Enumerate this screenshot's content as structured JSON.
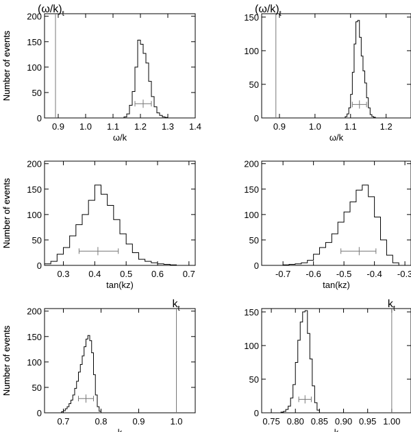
{
  "chart_data": [
    {
      "type": "histogram",
      "id": "p1",
      "xlabel": "ω/k",
      "ylabel": "Number of events",
      "xlim": [
        0.85,
        1.4
      ],
      "ylim": [
        0,
        205
      ],
      "xticks": [
        0.9,
        1.0,
        1.1,
        1.2,
        1.3,
        1.4
      ],
      "xtick_labels": [
        "0.9",
        "1.0",
        "1.1",
        "1.2",
        "1.3",
        "1.4"
      ],
      "yticks": [
        0,
        50,
        100,
        150,
        200
      ],
      "ytick_labels": [
        "0",
        "50",
        "100",
        "150",
        "200"
      ],
      "bin_edges": [
        1.14,
        1.15,
        1.16,
        1.17,
        1.18,
        1.19,
        1.2,
        1.21,
        1.22,
        1.23,
        1.24,
        1.25,
        1.26,
        1.27,
        1.28,
        1.29,
        1.3
      ],
      "counts": [
        2,
        8,
        25,
        52,
        100,
        153,
        145,
        127,
        108,
        72,
        42,
        22,
        10,
        5,
        2,
        1
      ],
      "reference": {
        "value": 0.89,
        "label": "(ω/k)",
        "subscript": "t"
      },
      "errorbar": {
        "center": 1.21,
        "low": 1.18,
        "high": 1.24,
        "y": 28
      }
    },
    {
      "type": "histogram",
      "id": "p2",
      "xlabel": "ω/k",
      "ylabel": "Number of events",
      "xlim": [
        0.85,
        1.27
      ],
      "ylim": [
        0,
        155
      ],
      "xticks": [
        0.9,
        1.0,
        1.1,
        1.2
      ],
      "xtick_labels": [
        "0.9",
        "1.0",
        "1.1",
        "1.2"
      ],
      "yticks": [
        0,
        50,
        100,
        150
      ],
      "ytick_labels": [
        "0",
        "50",
        "100",
        "150"
      ],
      "bin_edges": [
        1.085,
        1.09,
        1.095,
        1.1,
        1.105,
        1.11,
        1.115,
        1.12,
        1.125,
        1.13,
        1.135,
        1.14,
        1.145,
        1.15,
        1.155,
        1.16,
        1.165,
        1.17
      ],
      "counts": [
        2,
        6,
        15,
        35,
        68,
        110,
        143,
        145,
        120,
        92,
        70,
        52,
        30,
        15,
        5,
        2,
        1
      ],
      "reference": {
        "value": 0.89,
        "label": "(ω/k)",
        "subscript": "t"
      },
      "errorbar": {
        "center": 1.125,
        "low": 1.105,
        "high": 1.145,
        "y": 20
      }
    },
    {
      "type": "histogram",
      "id": "p3",
      "xlabel": "tan(kz)",
      "ylabel": "Number of events",
      "xlim": [
        0.24,
        0.72
      ],
      "ylim": [
        0,
        205
      ],
      "xticks": [
        0.3,
        0.4,
        0.5,
        0.6,
        0.7
      ],
      "xtick_labels": [
        "0.3",
        "0.4",
        "0.5",
        "0.6",
        "0.7"
      ],
      "yticks": [
        0,
        50,
        100,
        150,
        200
      ],
      "ytick_labels": [
        "0",
        "50",
        "100",
        "150",
        "200"
      ],
      "bin_edges": [
        0.24,
        0.26,
        0.28,
        0.3,
        0.32,
        0.34,
        0.36,
        0.38,
        0.4,
        0.42,
        0.44,
        0.46,
        0.48,
        0.5,
        0.52,
        0.54,
        0.56,
        0.58,
        0.6,
        0.62,
        0.64,
        0.66
      ],
      "counts": [
        3,
        8,
        22,
        35,
        58,
        80,
        100,
        128,
        158,
        140,
        118,
        90,
        62,
        42,
        25,
        12,
        8,
        5,
        3,
        2,
        1
      ],
      "errorbar": {
        "center": 0.41,
        "low": 0.35,
        "high": 0.475,
        "y": 28
      }
    },
    {
      "type": "histogram",
      "id": "p4",
      "xlabel": "tan(kz)",
      "ylabel": "Number of events",
      "xlim": [
        -0.77,
        -0.28
      ],
      "ylim": [
        0,
        205
      ],
      "xticks": [
        -0.7,
        -0.6,
        -0.5,
        -0.4,
        -0.3
      ],
      "xtick_labels": [
        "-0.7",
        "-0.6",
        "-0.5",
        "-0.4",
        "-0.3"
      ],
      "yticks": [
        0,
        50,
        100,
        150,
        200
      ],
      "ytick_labels": [
        "0",
        "50",
        "100",
        "150",
        "200"
      ],
      "bin_edges": [
        -0.7,
        -0.68,
        -0.66,
        -0.64,
        -0.62,
        -0.6,
        -0.58,
        -0.56,
        -0.54,
        -0.52,
        -0.5,
        -0.48,
        -0.46,
        -0.44,
        -0.42,
        -0.4,
        -0.38,
        -0.36,
        -0.34,
        -0.32
      ],
      "counts": [
        1,
        2,
        3,
        5,
        10,
        22,
        35,
        45,
        62,
        85,
        105,
        125,
        148,
        158,
        135,
        95,
        50,
        20,
        5
      ],
      "errorbar": {
        "center": -0.45,
        "low": -0.51,
        "high": -0.395,
        "y": 28
      }
    },
    {
      "type": "histogram",
      "id": "p5",
      "xlabel": "k",
      "ylabel": "Number of events",
      "xlim": [
        0.65,
        1.05
      ],
      "ylim": [
        0,
        205
      ],
      "xticks": [
        0.7,
        0.8,
        0.9,
        1.0
      ],
      "xtick_labels": [
        "0.7",
        "0.8",
        "0.9",
        "1.0"
      ],
      "yticks": [
        0,
        50,
        100,
        150,
        200
      ],
      "ytick_labels": [
        "0",
        "50",
        "100",
        "150",
        "200"
      ],
      "bin_edges": [
        0.695,
        0.7,
        0.705,
        0.71,
        0.715,
        0.72,
        0.725,
        0.73,
        0.735,
        0.74,
        0.745,
        0.75,
        0.755,
        0.76,
        0.765,
        0.77,
        0.775,
        0.78,
        0.785,
        0.79,
        0.795,
        0.8
      ],
      "counts": [
        2,
        4,
        8,
        12,
        18,
        25,
        35,
        48,
        62,
        80,
        95,
        112,
        130,
        145,
        152,
        142,
        118,
        75,
        35,
        12,
        3
      ],
      "reference": {
        "value": 1.0,
        "label": "k",
        "subscript": "t"
      },
      "errorbar": {
        "center": 0.76,
        "low": 0.74,
        "high": 0.78,
        "y": 28
      }
    },
    {
      "type": "histogram",
      "id": "p6",
      "xlabel": "k",
      "ylabel": "Number of events",
      "xlim": [
        0.73,
        1.04
      ],
      "ylim": [
        0,
        155
      ],
      "xticks": [
        0.75,
        0.8,
        0.85,
        0.9,
        0.95,
        1.0
      ],
      "xtick_labels": [
        "0.75",
        "0.80",
        "0.85",
        "0.90",
        "0.95",
        "1.00"
      ],
      "yticks": [
        0,
        50,
        100,
        150
      ],
      "ytick_labels": [
        "0",
        "50",
        "100",
        "150"
      ],
      "bin_edges": [
        0.77,
        0.775,
        0.78,
        0.785,
        0.79,
        0.795,
        0.8,
        0.805,
        0.81,
        0.815,
        0.82,
        0.825,
        0.83,
        0.835,
        0.84,
        0.845,
        0.85
      ],
      "counts": [
        1,
        2,
        5,
        10,
        22,
        42,
        75,
        108,
        135,
        150,
        152,
        118,
        80,
        40,
        15,
        4
      ],
      "reference": {
        "value": 1.0,
        "label": "k",
        "subscript": "t"
      },
      "errorbar": {
        "center": 0.82,
        "low": 0.807,
        "high": 0.833,
        "y": 20
      }
    }
  ]
}
